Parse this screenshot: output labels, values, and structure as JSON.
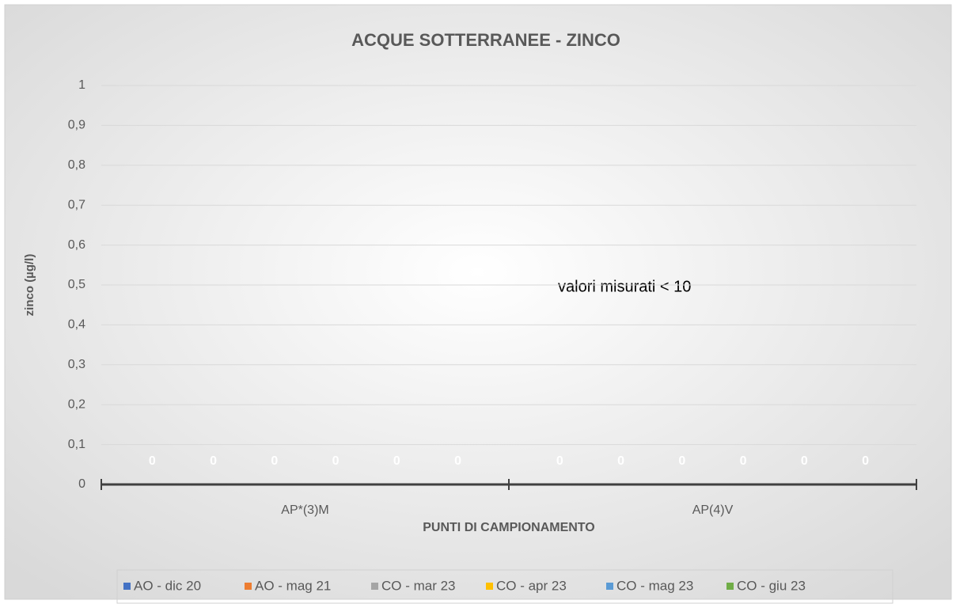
{
  "chart_data": {
    "type": "bar",
    "title": "ACQUE SOTTERRANEE - ZINCO",
    "x_label": "PUNTI DI CAMPIONAMENTO",
    "y_label": "zinco (µg/l)",
    "annotation": "valori misurati   < 10",
    "categories": [
      "AP*(3)M",
      "AP(4)V"
    ],
    "series": [
      {
        "name": "AO - dic 20",
        "color": "#4472c4",
        "values": [
          0,
          0
        ]
      },
      {
        "name": "AO - mag 21",
        "color": "#ed7d31",
        "values": [
          0,
          0
        ]
      },
      {
        "name": "CO - mar 23",
        "color": "#a5a5a5",
        "values": [
          0,
          0
        ]
      },
      {
        "name": "CO - apr 23",
        "color": "#ffc000",
        "values": [
          0,
          0
        ]
      },
      {
        "name": "CO - mag 23",
        "color": "#5b9bd5",
        "values": [
          0,
          0
        ]
      },
      {
        "name": "CO - giu 23",
        "color": "#70ad47",
        "values": [
          0,
          0
        ]
      }
    ],
    "ylim": [
      0,
      1
    ],
    "yticks": [
      0,
      {
        "value": 0.1,
        "label": "0,1"
      },
      {
        "value": 0.2,
        "label": "0,2"
      },
      {
        "value": 0.3,
        "label": "0,3"
      },
      {
        "value": 0.4,
        "label": "0,4"
      },
      {
        "value": 0.5,
        "label": "0,5"
      },
      {
        "value": 0.6,
        "label": "0,6"
      },
      {
        "value": 0.7,
        "label": "0,7"
      },
      {
        "value": 0.8,
        "label": "0,8"
      },
      {
        "value": 0.9,
        "label": "0,9"
      },
      1
    ],
    "grid": true,
    "legend": "bottom"
  }
}
